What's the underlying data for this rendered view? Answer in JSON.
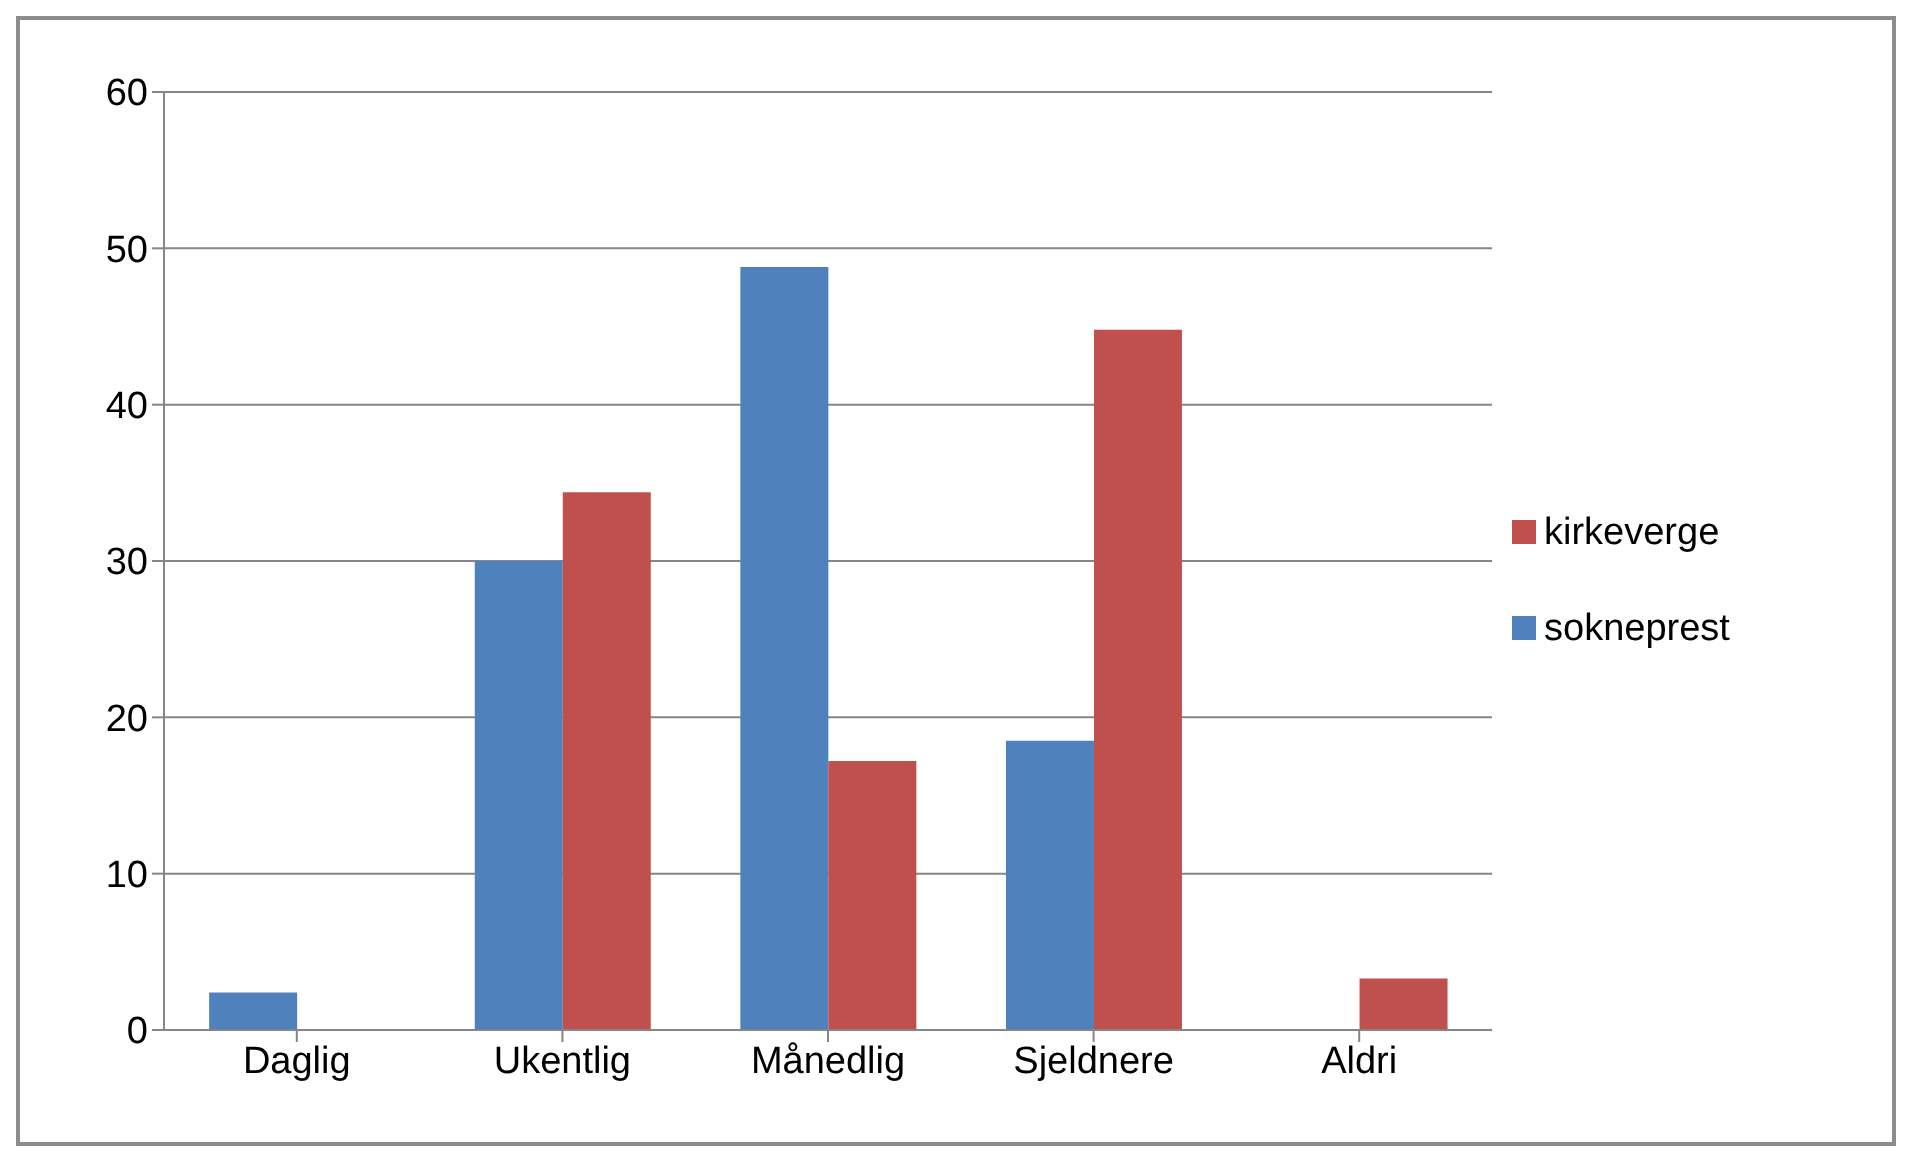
{
  "chart_data": {
    "type": "bar",
    "categories": [
      "Daglig",
      "Ukentlig",
      "Månedlig",
      "Sjeldnere",
      "Aldri"
    ],
    "series": [
      {
        "name": "sokneprest",
        "color": "#4f81bd",
        "values": [
          2.4,
          30,
          48.8,
          18.5,
          0
        ]
      },
      {
        "name": "kirkeverge",
        "color": "#c0504d",
        "values": [
          0,
          34.4,
          17.2,
          44.8,
          3.3
        ]
      }
    ],
    "ylim": [
      0,
      60
    ],
    "yticks": [
      0,
      10,
      20,
      30,
      40,
      50,
      60
    ],
    "grid": "y",
    "legend": "right"
  }
}
